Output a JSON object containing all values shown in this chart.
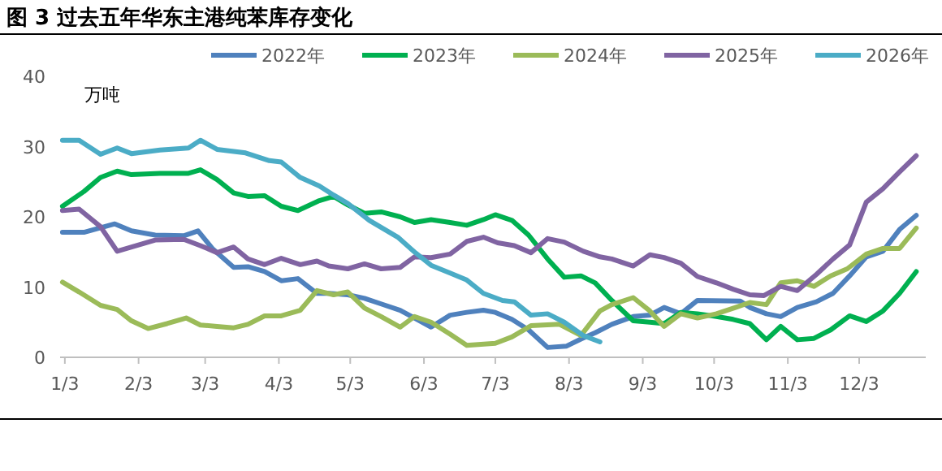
{
  "chart_data": {
    "type": "line",
    "title": "图 3  过去五年华东主港纯苯库存变化",
    "ylabel": "万吨",
    "xlim": [
      "--01-01",
      "--12-31"
    ],
    "xticks": [
      {
        "value": "--01-03",
        "label": "1/3"
      },
      {
        "value": "--02-03",
        "label": "2/3"
      },
      {
        "value": "--03-03",
        "label": "3/3"
      },
      {
        "value": "--04-03",
        "label": "4/3"
      },
      {
        "value": "--05-03",
        "label": "5/3"
      },
      {
        "value": "--06-03",
        "label": "6/3"
      },
      {
        "value": "--07-03",
        "label": "7/3"
      },
      {
        "value": "--08-03",
        "label": "8/3"
      },
      {
        "value": "--09-03",
        "label": "9/3"
      },
      {
        "value": "--10-03",
        "label": "10/3"
      },
      {
        "value": "--11-03",
        "label": "11/3"
      },
      {
        "value": "--12-03",
        "label": "12/3"
      }
    ],
    "ylim": [
      0,
      40
    ],
    "yticks": [
      0,
      10,
      20,
      30,
      40
    ],
    "grid": false,
    "legend": "top",
    "marker": "none",
    "line_style": "solid",
    "series": [
      {
        "name": "2022年",
        "color": "#4f81bd",
        "x": [
          "--01-02",
          "--01-11",
          "--01-24",
          "--01-31",
          "--02-10",
          "--02-22",
          "--02-28",
          "--03-06",
          "--03-15",
          "--03-21",
          "--03-28",
          "--04-04",
          "--04-11",
          "--04-19",
          "--04-24",
          "--05-02",
          "--05-09",
          "--05-16",
          "--05-24",
          "--05-30",
          "--06-06",
          "--06-14",
          "--06-21",
          "--06-28",
          "--07-03",
          "--07-10",
          "--07-17",
          "--07-25",
          "--08-02",
          "--08-08",
          "--08-14",
          "--08-21",
          "--08-30",
          "--09-06",
          "--09-12",
          "--09-19",
          "--09-26",
          "--10-14",
          "--10-18",
          "--10-25",
          "--10-31",
          "--11-07",
          "--11-15",
          "--11-22",
          "--11-29",
          "--12-06",
          "--12-13",
          "--12-20",
          "--12-27"
        ],
        "values": [
          17.8,
          17.8,
          19,
          18,
          17.4,
          17.3,
          18,
          15.5,
          12.8,
          12.9,
          12.2,
          10.9,
          11.2,
          9.1,
          9.1,
          8.9,
          8.4,
          7.6,
          6.7,
          5.6,
          4.3,
          6,
          6.4,
          6.7,
          6.4,
          5.4,
          3.9,
          1.4,
          1.6,
          2.6,
          3.5,
          4.7,
          5.8,
          6,
          7.1,
          6.2,
          8.1,
          8,
          7.1,
          6.2,
          5.8,
          7.1,
          7.9,
          9.1,
          11.6,
          14.3,
          15.1,
          18.2,
          20.2
        ]
      },
      {
        "name": "2023年",
        "color": "#00b050",
        "x": [
          "--01-02",
          "--01-11",
          "--01-18",
          "--01-25",
          "--01-31",
          "--02-12",
          "--02-24",
          "--03-01",
          "--03-08",
          "--03-15",
          "--03-21",
          "--03-28",
          "--04-04",
          "--04-11",
          "--04-20",
          "--04-26",
          "--05-02",
          "--05-09",
          "--05-16",
          "--05-24",
          "--05-30",
          "--06-06",
          "--06-14",
          "--06-21",
          "--06-28",
          "--07-03",
          "--07-10",
          "--07-17",
          "--07-25",
          "--08-01",
          "--08-08",
          "--08-14",
          "--08-21",
          "--08-30",
          "--09-06",
          "--09-12",
          "--09-19",
          "--09-26",
          "--10-04",
          "--10-11",
          "--10-18",
          "--10-25",
          "--10-31",
          "--11-07",
          "--11-14",
          "--11-21",
          "--11-29",
          "--12-06",
          "--12-13",
          "--12-20",
          "--12-27"
        ],
        "values": [
          21.5,
          23.6,
          25.6,
          26.5,
          26,
          26.2,
          26.2,
          26.7,
          25.3,
          23.4,
          22.9,
          23,
          21.5,
          20.9,
          22.3,
          22.9,
          21.7,
          20.5,
          20.7,
          20,
          19.2,
          19.6,
          19.2,
          18.8,
          19.6,
          20.3,
          19.5,
          17.4,
          14,
          11.4,
          11.6,
          10.6,
          8.1,
          5.2,
          5,
          4.8,
          6.4,
          6.2,
          5.8,
          5.4,
          4.8,
          2.5,
          4.4,
          2.5,
          2.7,
          3.9,
          5.9,
          5.1,
          6.6,
          9.1,
          12.2
        ]
      },
      {
        "name": "2024年",
        "color": "#9bbb59",
        "x": [
          "--01-02",
          "--01-09",
          "--01-18",
          "--01-25",
          "--01-31",
          "--02-07",
          "--02-15",
          "--02-23",
          "--03-01",
          "--03-08",
          "--03-15",
          "--03-21",
          "--03-28",
          "--04-04",
          "--04-12",
          "--04-19",
          "--04-26",
          "--05-02",
          "--05-09",
          "--05-16",
          "--05-24",
          "--05-30",
          "--06-06",
          "--06-14",
          "--06-21",
          "--07-03",
          "--07-10",
          "--07-18",
          "--07-30",
          "--08-08",
          "--08-16",
          "--08-21",
          "--08-30",
          "--09-06",
          "--09-12",
          "--09-19",
          "--09-26",
          "--10-04",
          "--10-12",
          "--10-18",
          "--10-25",
          "--10-31",
          "--11-07",
          "--11-14",
          "--11-21",
          "--11-28",
          "--12-06",
          "--12-13",
          "--12-20",
          "--12-27"
        ],
        "values": [
          10.7,
          9.3,
          7.4,
          6.8,
          5.2,
          4.1,
          4.8,
          5.6,
          4.6,
          4.4,
          4.2,
          4.7,
          5.9,
          5.9,
          6.7,
          9.5,
          8.9,
          9.3,
          7,
          5.8,
          4.3,
          5.8,
          5,
          3.3,
          1.7,
          2,
          2.9,
          4.5,
          4.7,
          3.1,
          6.6,
          7.5,
          8.5,
          6.6,
          4.4,
          6.2,
          5.6,
          6.2,
          7.1,
          7.8,
          7.5,
          10.6,
          10.9,
          10.1,
          11.6,
          12.6,
          14.7,
          15.5,
          15.5,
          18.4
        ]
      },
      {
        "name": "2025年",
        "color": "#8064a2",
        "x": [
          "--01-02",
          "--01-09",
          "--01-18",
          "--01-25",
          "--02-03",
          "--02-10",
          "--02-22",
          "--03-01",
          "--03-08",
          "--03-15",
          "--03-21",
          "--03-28",
          "--04-04",
          "--04-12",
          "--04-19",
          "--04-24",
          "--05-02",
          "--05-09",
          "--05-16",
          "--05-24",
          "--05-30",
          "--06-06",
          "--06-14",
          "--06-21",
          "--06-28",
          "--07-04",
          "--07-11",
          "--07-18",
          "--07-25",
          "--08-01",
          "--08-09",
          "--08-16",
          "--08-21",
          "--08-30",
          "--09-06",
          "--09-12",
          "--09-19",
          "--09-26",
          "--10-04",
          "--10-11",
          "--10-18",
          "--10-24",
          "--10-31",
          "--11-07",
          "--11-15",
          "--11-22",
          "--11-29",
          "--12-06",
          "--12-13",
          "--12-20",
          "--12-27"
        ],
        "values": [
          20.9,
          21.1,
          18.6,
          15.1,
          16,
          16.7,
          16.8,
          15.9,
          14.9,
          15.7,
          14,
          13.2,
          14.1,
          13.2,
          13.7,
          13,
          12.6,
          13.3,
          12.6,
          12.8,
          14.3,
          14.2,
          14.7,
          16.5,
          17.1,
          16.3,
          15.9,
          14.9,
          16.9,
          16.4,
          15.1,
          14.3,
          14,
          13,
          14.6,
          14.2,
          13.4,
          11.5,
          10.6,
          9.7,
          8.9,
          8.8,
          10.1,
          9.5,
          11.8,
          14,
          16,
          22.1,
          24,
          26.4,
          28.7
        ]
      },
      {
        "name": "2026年",
        "color": "#4bacc6",
        "x": [
          "--01-02",
          "--01-09",
          "--01-18",
          "--01-25",
          "--01-31",
          "--02-12",
          "--02-24",
          "--03-01",
          "--03-08",
          "--03-20",
          "--03-30",
          "--04-04",
          "--04-12",
          "--04-20",
          "--04-26",
          "--05-02",
          "--05-11",
          "--05-23",
          "--05-30",
          "--06-06",
          "--06-14",
          "--06-21",
          "--06-28",
          "--07-06",
          "--07-11",
          "--07-18",
          "--07-25",
          "--08-01",
          "--08-09",
          "--08-16"
        ],
        "values": [
          30.9,
          30.9,
          28.9,
          29.8,
          29,
          29.5,
          29.8,
          30.9,
          29.6,
          29.1,
          28,
          27.8,
          25.6,
          24.4,
          23.1,
          21.9,
          19.5,
          17.1,
          15,
          13.1,
          12,
          11,
          9.1,
          8.1,
          7.9,
          6,
          6.2,
          5,
          3.1,
          2.2
        ]
      }
    ]
  }
}
